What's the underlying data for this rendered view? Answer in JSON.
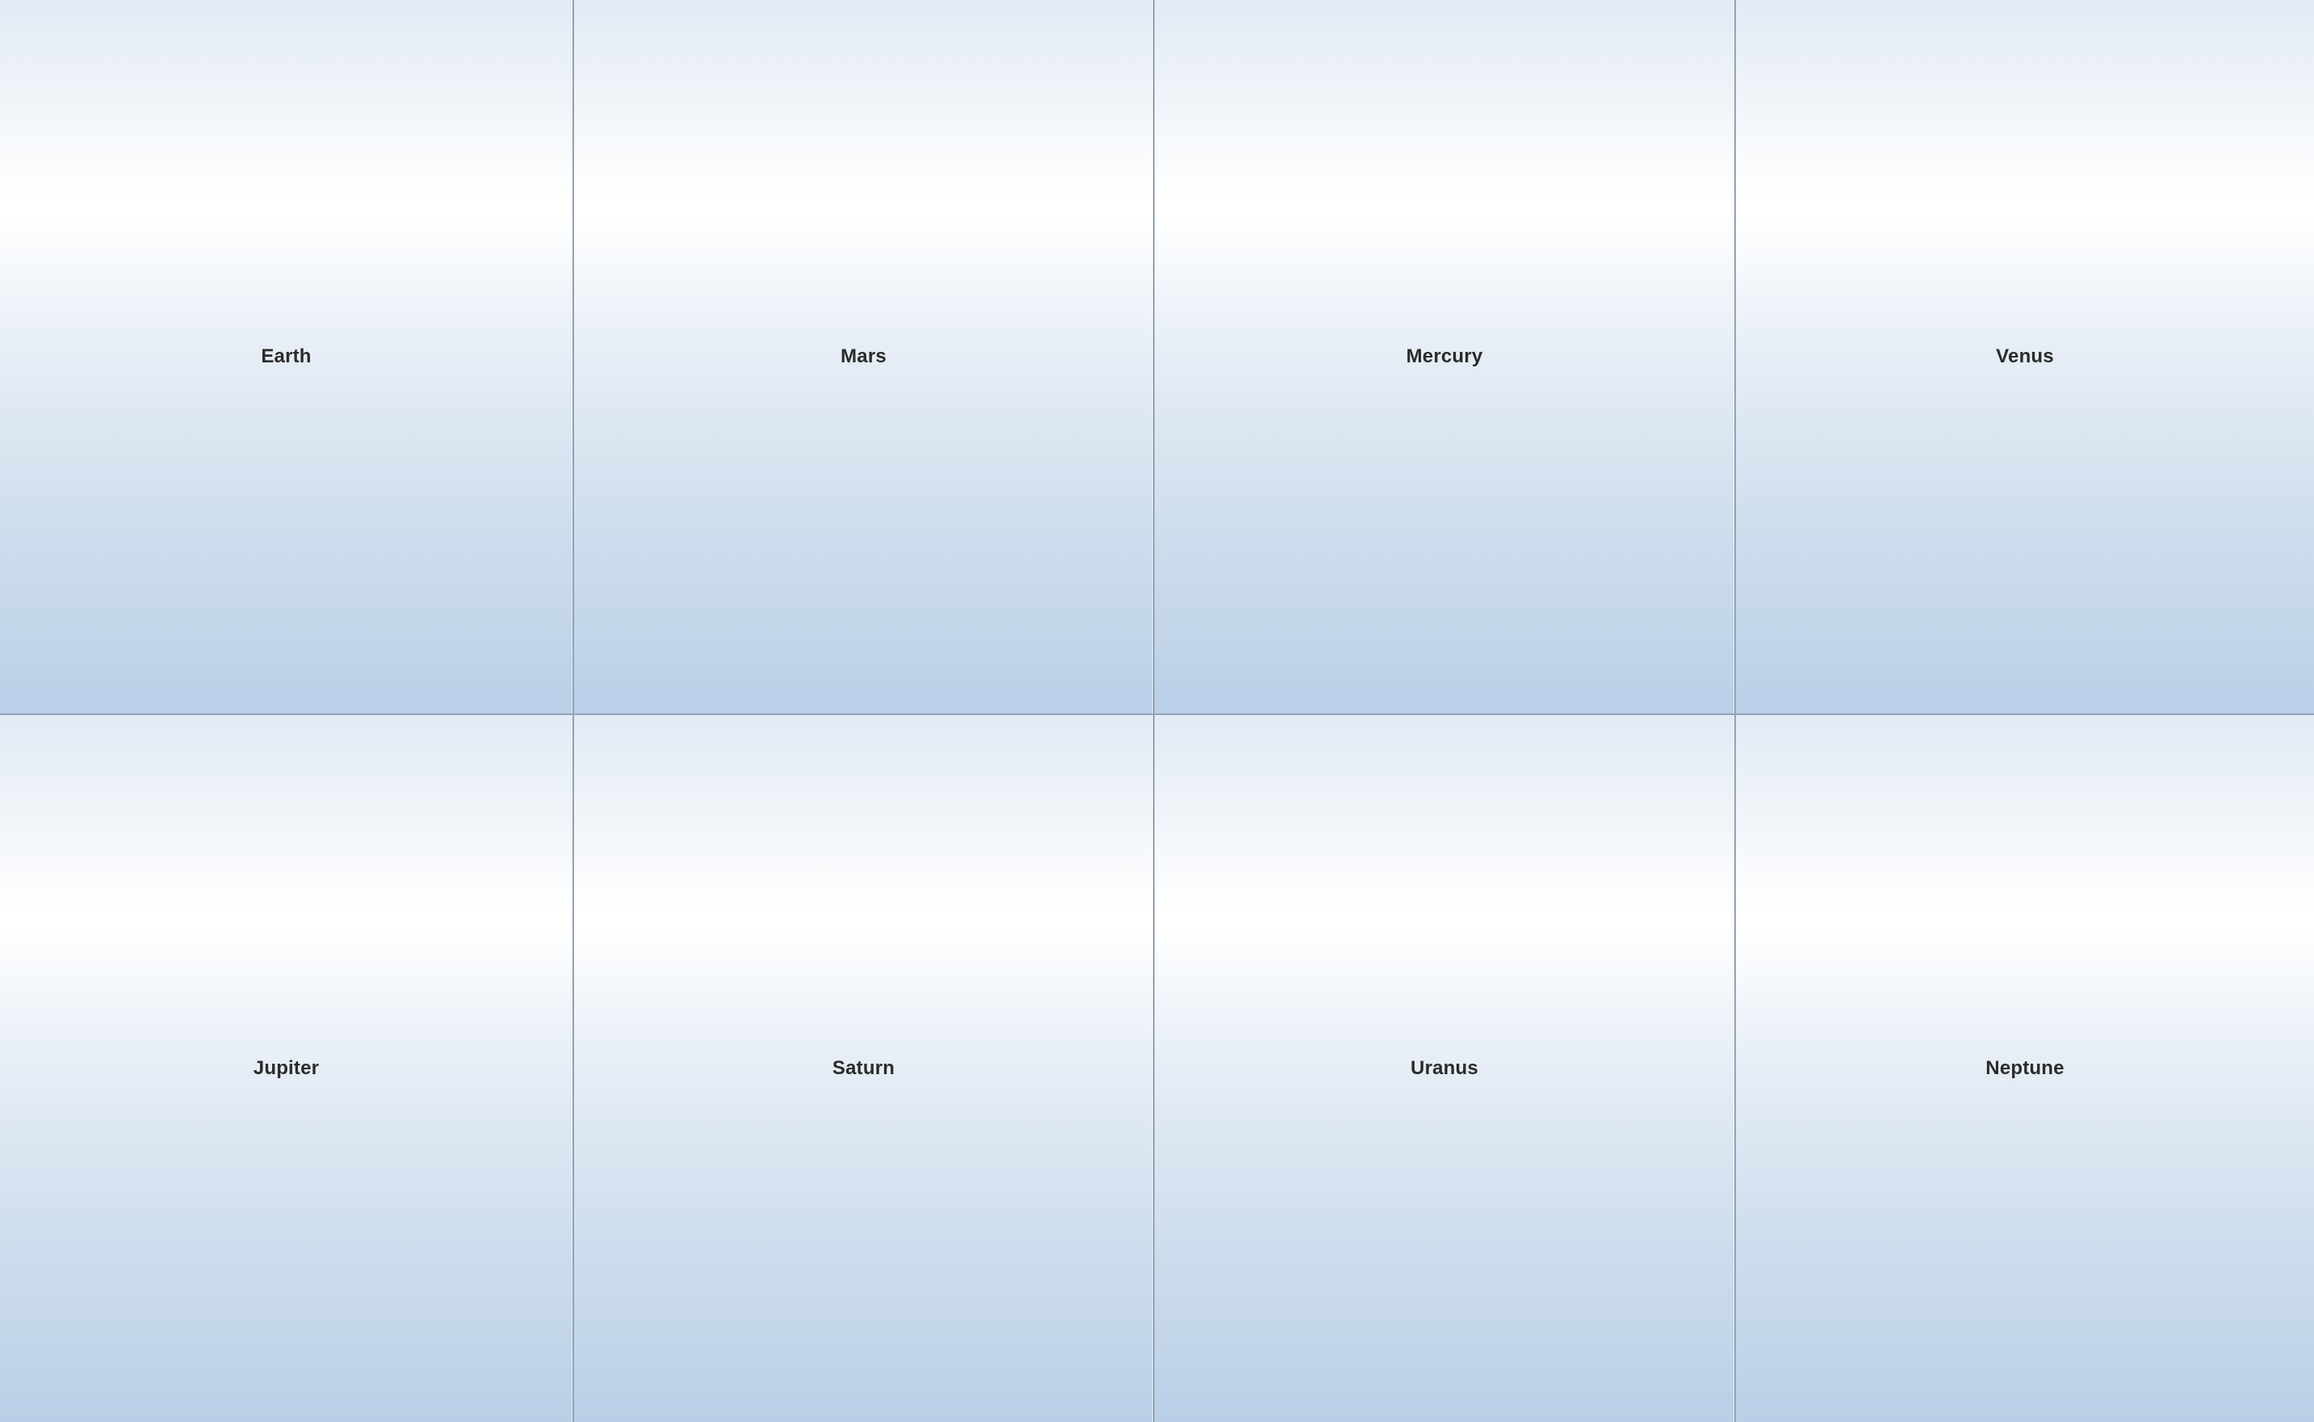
{
  "tiles": [
    {
      "label": "Earth"
    },
    {
      "label": "Mars"
    },
    {
      "label": "Mercury"
    },
    {
      "label": "Venus"
    },
    {
      "label": "Jupiter"
    },
    {
      "label": "Saturn"
    },
    {
      "label": "Uranus"
    },
    {
      "label": "Neptune"
    }
  ],
  "colors": {
    "gradient_top": "#e2eaf4",
    "gradient_highlight": "#ffffff",
    "gradient_bottom": "#b9cfe7",
    "border": "#8fa2b8",
    "label_text": "#2b2b2b"
  }
}
